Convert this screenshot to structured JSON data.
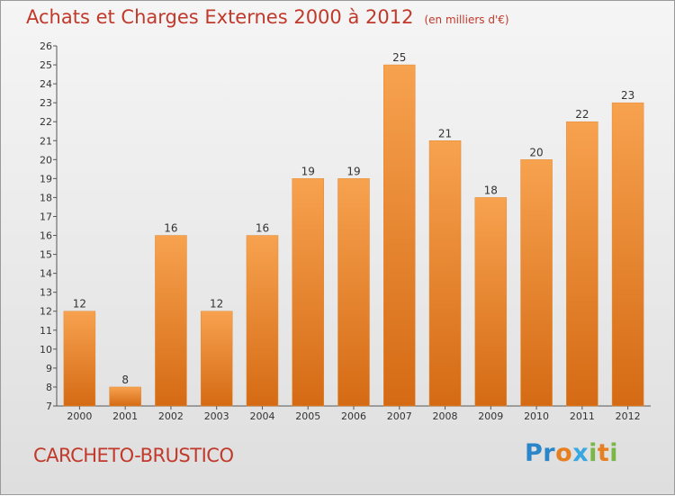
{
  "title": "Achats et Charges Externes 2000 à 2012",
  "subtitle": "(en milliers d'€)",
  "commune": "CARCHETO-BRUSTICO",
  "logo": {
    "letters": [
      "P",
      "r",
      "o",
      "x",
      "i",
      "t",
      "i"
    ],
    "colors": [
      "#2a86c9",
      "#2a86c9",
      "#e67e22",
      "#3aa8e0",
      "#7ab648",
      "#e67e22",
      "#7ab648"
    ]
  },
  "chart_data": {
    "type": "bar",
    "categories": [
      "2000",
      "2001",
      "2002",
      "2003",
      "2004",
      "2005",
      "2006",
      "2007",
      "2008",
      "2009",
      "2010",
      "2011",
      "2012"
    ],
    "values": [
      12,
      8,
      16,
      12,
      16,
      19,
      19,
      25,
      21,
      18,
      20,
      22,
      23
    ],
    "ylim": [
      7,
      26
    ],
    "yticks": [
      7,
      8,
      9,
      10,
      11,
      12,
      13,
      14,
      15,
      16,
      17,
      18,
      19,
      20,
      21,
      22,
      23,
      24,
      25,
      26
    ],
    "bar_color_top": "#f7a24f",
    "bar_color_bottom": "#d56a14",
    "grid": false
  }
}
